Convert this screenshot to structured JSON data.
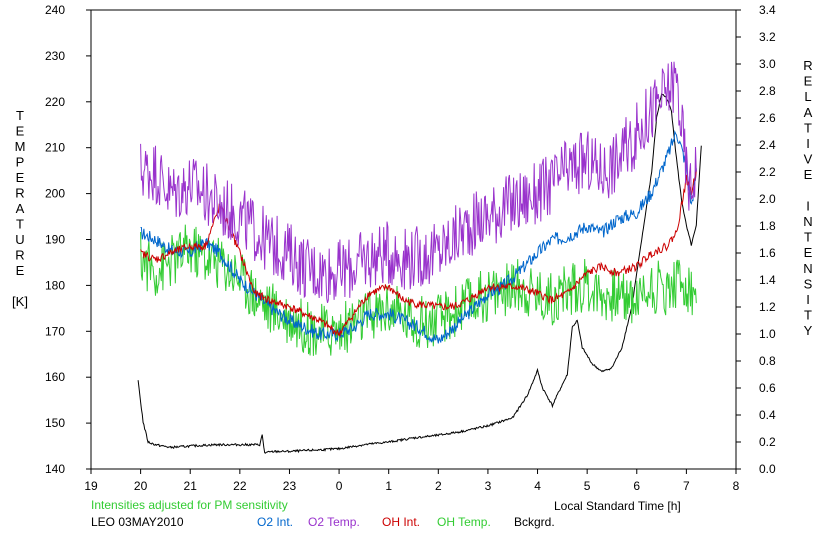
{
  "chart_data": {
    "type": "line",
    "xlabel": "Local Standard Time [h]",
    "ylabel_left": [
      "T",
      "E",
      "M",
      "P",
      "E",
      "R",
      "A",
      "T",
      "U",
      "R",
      "E",
      "",
      "[K]"
    ],
    "ylabel_right": [
      "R",
      "E",
      "L",
      "A",
      "T",
      "I",
      "V",
      "E",
      "",
      "I",
      "N",
      "T",
      "E",
      "N",
      "S",
      "I",
      "T",
      "Y"
    ],
    "note": "Intensities adjusted for PM sensitivity",
    "station": "LEO 03MAY2010",
    "x_ticks": [
      19,
      20,
      21,
      22,
      23,
      24,
      25,
      26,
      27,
      28,
      29,
      30,
      31,
      32
    ],
    "x_tick_labels": [
      "19",
      "20",
      "21",
      "22",
      "23",
      "0",
      "1",
      "2",
      "3",
      "4",
      "5",
      "6",
      "7",
      "8"
    ],
    "xlim": [
      19,
      32
    ],
    "y_left_ticks": [
      140,
      150,
      160,
      170,
      180,
      190,
      200,
      210,
      220,
      230,
      240
    ],
    "ylim_left": [
      140,
      240
    ],
    "y_right_ticks": [
      "0.0",
      "0.2",
      "0.4",
      "0.6",
      "0.8",
      "1.0",
      "1.2",
      "1.4",
      "1.6",
      "1.8",
      "2.0",
      "2.2",
      "2.4",
      "2.6",
      "2.8",
      "3.0",
      "3.2",
      "3.4"
    ],
    "ylim_right": [
      0,
      3.4
    ],
    "series": [
      {
        "name": "O2 Int.",
        "axis": "right",
        "color": "#0066cc",
        "noise": 0.05,
        "x": [
          20.0,
          20.3,
          20.6,
          21.0,
          21.3,
          21.6,
          22.0,
          22.3,
          22.6,
          23.0,
          23.3,
          23.6,
          24.0,
          24.3,
          24.6,
          25.0,
          25.3,
          25.6,
          26.0,
          26.3,
          26.6,
          27.0,
          27.3,
          27.6,
          28.0,
          28.3,
          28.6,
          29.0,
          29.3,
          29.6,
          30.0,
          30.3,
          30.6,
          30.8,
          31.0,
          31.1,
          31.2
        ],
        "y": [
          1.75,
          1.7,
          1.62,
          1.6,
          1.68,
          1.6,
          1.4,
          1.3,
          1.2,
          1.1,
          1.05,
          1.0,
          1.0,
          1.05,
          1.15,
          1.15,
          1.1,
          1.05,
          0.95,
          1.05,
          1.15,
          1.3,
          1.35,
          1.45,
          1.6,
          1.7,
          1.72,
          1.8,
          1.75,
          1.85,
          1.9,
          2.05,
          2.3,
          2.5,
          2.25,
          1.95,
          2.2
        ]
      },
      {
        "name": "O2 Temp.",
        "axis": "left",
        "color": "#9933cc",
        "noise": 7,
        "x": [
          20.0,
          20.3,
          20.6,
          21.0,
          21.3,
          21.6,
          22.0,
          22.3,
          22.6,
          23.0,
          23.3,
          23.6,
          24.0,
          24.3,
          24.6,
          25.0,
          25.3,
          25.6,
          26.0,
          26.3,
          26.6,
          27.0,
          27.3,
          27.6,
          28.0,
          28.3,
          28.6,
          29.0,
          29.3,
          29.6,
          30.0,
          30.3,
          30.6,
          30.8,
          31.0,
          31.1,
          31.2
        ],
        "y": [
          205,
          205,
          200,
          202,
          200,
          197,
          195,
          192,
          189,
          187,
          184,
          183,
          183,
          184,
          186,
          187,
          186,
          186,
          187,
          190,
          193,
          195,
          197,
          198,
          200,
          202,
          205,
          207,
          205,
          207,
          213,
          218,
          222,
          225,
          205,
          200,
          208
        ]
      },
      {
        "name": "OH Int.",
        "axis": "right",
        "color": "#cc0000",
        "noise": 0.03,
        "x": [
          20.0,
          20.3,
          20.6,
          21.0,
          21.3,
          21.6,
          22.0,
          22.3,
          22.6,
          23.0,
          23.3,
          23.6,
          24.0,
          24.3,
          24.6,
          25.0,
          25.3,
          25.6,
          26.0,
          26.3,
          26.6,
          27.0,
          27.3,
          27.6,
          28.0,
          28.3,
          28.6,
          29.0,
          29.3,
          29.6,
          30.0,
          30.3,
          30.6,
          30.8,
          31.0,
          31.1,
          31.2
        ],
        "y": [
          1.6,
          1.55,
          1.6,
          1.65,
          1.65,
          1.95,
          1.6,
          1.3,
          1.25,
          1.2,
          1.15,
          1.1,
          1.0,
          1.15,
          1.3,
          1.35,
          1.25,
          1.22,
          1.2,
          1.2,
          1.25,
          1.35,
          1.35,
          1.35,
          1.3,
          1.25,
          1.3,
          1.45,
          1.5,
          1.45,
          1.5,
          1.6,
          1.65,
          1.75,
          2.15,
          2.05,
          2.2
        ]
      },
      {
        "name": "OH Temp.",
        "axis": "left",
        "color": "#33cc33",
        "noise": 6,
        "x": [
          20.0,
          20.3,
          20.6,
          21.0,
          21.3,
          21.6,
          22.0,
          22.3,
          22.6,
          23.0,
          23.3,
          23.6,
          24.0,
          24.3,
          24.6,
          25.0,
          25.3,
          25.6,
          26.0,
          26.3,
          26.6,
          27.0,
          27.3,
          27.6,
          28.0,
          28.3,
          28.6,
          29.0,
          29.3,
          29.6,
          30.0,
          30.3,
          30.6,
          30.8,
          31.0,
          31.1,
          31.2
        ],
        "y": [
          186,
          183,
          185,
          188,
          186,
          185,
          182,
          178,
          175,
          173,
          171,
          170,
          170,
          172,
          173,
          175,
          173,
          172,
          172,
          174,
          176,
          178,
          179,
          180,
          178,
          177,
          179,
          180,
          178,
          178,
          177,
          180,
          179,
          181,
          180,
          178,
          179
        ]
      },
      {
        "name": "Bckgrd.",
        "axis": "right",
        "color": "#000000",
        "noise": 0.008,
        "x": [
          19.95,
          20.05,
          20.15,
          20.3,
          20.6,
          21.0,
          21.5,
          22.0,
          22.4,
          22.45,
          22.5,
          22.7,
          23.0,
          23.5,
          24.0,
          24.5,
          25.0,
          25.5,
          26.0,
          26.5,
          27.0,
          27.5,
          27.8,
          28.0,
          28.1,
          28.3,
          28.4,
          28.6,
          28.7,
          28.8,
          28.9,
          29.1,
          29.3,
          29.5,
          29.7,
          29.9,
          30.1,
          30.3,
          30.4,
          30.5,
          30.6,
          30.7,
          30.8,
          30.9,
          31.0,
          31.1,
          31.2,
          31.3
        ],
        "y": [
          0.65,
          0.35,
          0.2,
          0.18,
          0.16,
          0.17,
          0.18,
          0.18,
          0.18,
          0.25,
          0.12,
          0.13,
          0.13,
          0.14,
          0.15,
          0.18,
          0.2,
          0.23,
          0.25,
          0.28,
          0.32,
          0.38,
          0.55,
          0.73,
          0.6,
          0.47,
          0.55,
          0.7,
          1.05,
          1.1,
          0.9,
          0.78,
          0.72,
          0.75,
          0.9,
          1.2,
          1.7,
          2.2,
          2.6,
          2.78,
          2.75,
          2.65,
          2.3,
          2.0,
          1.8,
          1.66,
          1.8,
          2.4
        ]
      }
    ]
  }
}
